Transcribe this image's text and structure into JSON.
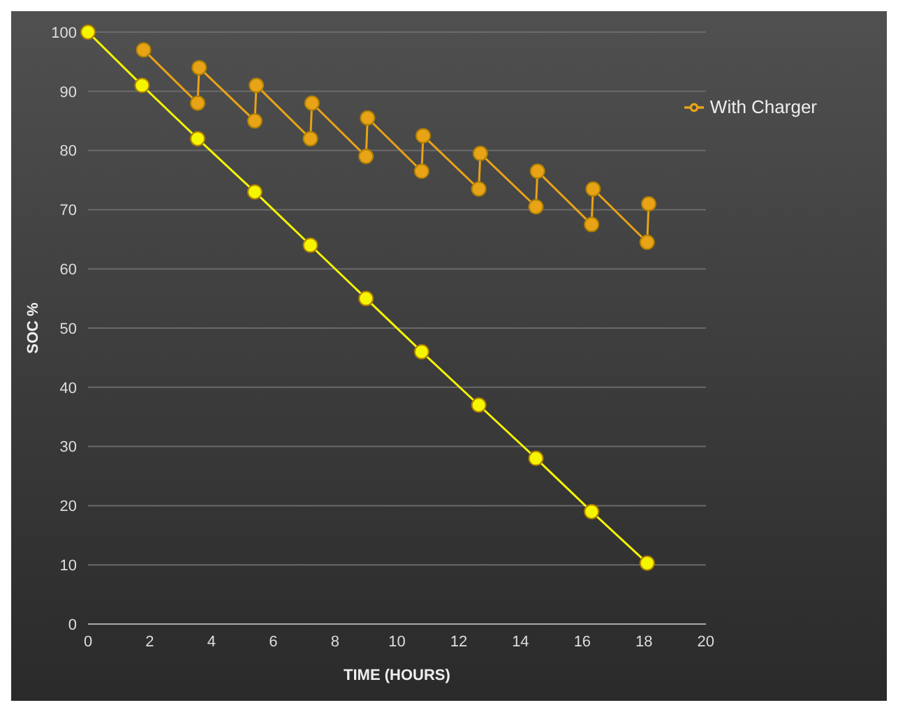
{
  "chart_data": {
    "type": "line",
    "xlabel": "TIME (HOURS)",
    "ylabel": "SOC %",
    "xlim": [
      0,
      20
    ],
    "xticks": [
      0,
      2,
      4,
      6,
      8,
      10,
      12,
      14,
      16,
      18,
      20
    ],
    "ylim": [
      0,
      100
    ],
    "yticks": [
      0,
      10,
      20,
      30,
      40,
      50,
      60,
      70,
      80,
      90,
      100
    ],
    "grid": "y",
    "legend": "top right",
    "marker": "circle",
    "line_style": "solid",
    "series": [
      {
        "name": "With Charger",
        "color": "#e8a317",
        "x": [
          1.8,
          3.55,
          3.6,
          5.4,
          5.45,
          7.2,
          7.25,
          9,
          9.05,
          10.8,
          10.85,
          12.65,
          12.7,
          14.5,
          14.55,
          16.3,
          16.35,
          18.1,
          18.15
        ],
        "values": [
          97,
          88,
          94,
          85,
          91,
          82,
          88,
          79,
          85.5,
          76.5,
          82.5,
          73.5,
          79.5,
          70.5,
          76.5,
          67.5,
          73.5,
          64.5,
          71
        ]
      },
      {
        "color": "#f5f500",
        "x": [
          0,
          1.75,
          3.55,
          5.4,
          7.2,
          9,
          10.8,
          12.65,
          14.5,
          16.3,
          18.1
        ],
        "values": [
          100,
          91,
          82,
          73,
          64,
          55,
          46,
          37,
          28,
          19,
          10.3
        ]
      }
    ]
  }
}
